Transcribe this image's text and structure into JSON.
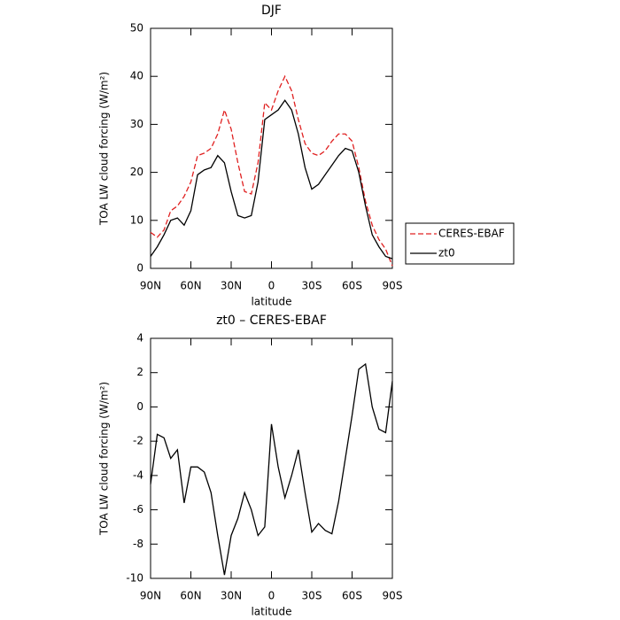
{
  "chart_data": [
    {
      "type": "line",
      "title": "DJF",
      "x_label": "latitude",
      "y_label": "TOA LW cloud forcing (W/m²)",
      "x": [
        90,
        85,
        80,
        75,
        70,
        65,
        60,
        55,
        50,
        45,
        40,
        35,
        30,
        25,
        20,
        15,
        10,
        5,
        0,
        -5,
        -10,
        -15,
        -20,
        -25,
        -30,
        -35,
        -40,
        -45,
        -50,
        -55,
        -60,
        -65,
        -70,
        -75,
        -80,
        -85,
        -90
      ],
      "series": [
        {
          "name": "CERES-EBAF",
          "color": "#e02020",
          "dash": true,
          "values": [
            7.5,
            6.5,
            8,
            12,
            13,
            15,
            18,
            23.5,
            24,
            25,
            28,
            33,
            29,
            22,
            16,
            15.5,
            22,
            34.5,
            33,
            37,
            40,
            37,
            31,
            26,
            24,
            23.5,
            24.5,
            26.5,
            28,
            28,
            26.5,
            21,
            14,
            9,
            6,
            4,
            0.5
          ]
        },
        {
          "name": "zt0",
          "color": "#000000",
          "dash": false,
          "values": [
            2.5,
            4.5,
            7,
            10,
            10.5,
            9,
            12,
            19.5,
            20.5,
            21,
            23.5,
            22,
            16,
            11,
            10.5,
            11,
            18,
            31,
            32,
            33,
            35,
            33,
            28,
            21,
            16.5,
            17.5,
            19.5,
            21.5,
            23.5,
            25,
            24.5,
            20,
            13,
            7,
            4.5,
            2.5,
            2
          ]
        }
      ],
      "xlim": [
        90,
        -90
      ],
      "xticks": [
        {
          "value": 90,
          "label": "90N"
        },
        {
          "value": 60,
          "label": "60N"
        },
        {
          "value": 30,
          "label": "30N"
        },
        0,
        {
          "value": -30,
          "label": "30S"
        },
        {
          "value": -60,
          "label": "60S"
        },
        {
          "value": -90,
          "label": "90S"
        }
      ],
      "ylim": [
        0,
        50
      ],
      "yticks": [
        0,
        10,
        20,
        30,
        40,
        50
      ],
      "legend": "right"
    },
    {
      "type": "line",
      "title": "zt0 – CERES-EBAF",
      "x_label": "latitude",
      "y_label": "TOA LW cloud forcing (W/m²)",
      "x": [
        90,
        85,
        80,
        75,
        70,
        65,
        60,
        55,
        50,
        45,
        40,
        35,
        30,
        25,
        20,
        15,
        10,
        5,
        0,
        -5,
        -10,
        -15,
        -20,
        -25,
        -30,
        -35,
        -40,
        -45,
        -50,
        -55,
        -60,
        -65,
        -70,
        -75,
        -80,
        -85,
        -90
      ],
      "series": [
        {
          "color": "#000000",
          "dash": false,
          "values": [
            -4.5,
            -1.6,
            -1.8,
            -3,
            -2.5,
            -5.6,
            -3.5,
            -3.5,
            -3.8,
            -5,
            -7.5,
            -9.8,
            -7.5,
            -6.5,
            -5,
            -6,
            -7.5,
            -7,
            -1,
            -3.5,
            -5.3,
            -4,
            -2.5,
            -5,
            -7.3,
            -6.8,
            -7.2,
            -7.4,
            -5.5,
            -3,
            -0.5,
            2.2,
            2.5,
            0,
            -1.3,
            -1.5,
            1.5
          ]
        }
      ],
      "xlim": [
        90,
        -90
      ],
      "xticks": [
        {
          "value": 90,
          "label": "90N"
        },
        {
          "value": 60,
          "label": "60N"
        },
        {
          "value": 30,
          "label": "30N"
        },
        0,
        {
          "value": -30,
          "label": "30S"
        },
        {
          "value": -60,
          "label": "60S"
        },
        {
          "value": -90,
          "label": "90S"
        }
      ],
      "ylim": [
        -10,
        4
      ],
      "yticks": [
        -10,
        -8,
        -6,
        -4,
        -2,
        0,
        2,
        4
      ]
    }
  ]
}
